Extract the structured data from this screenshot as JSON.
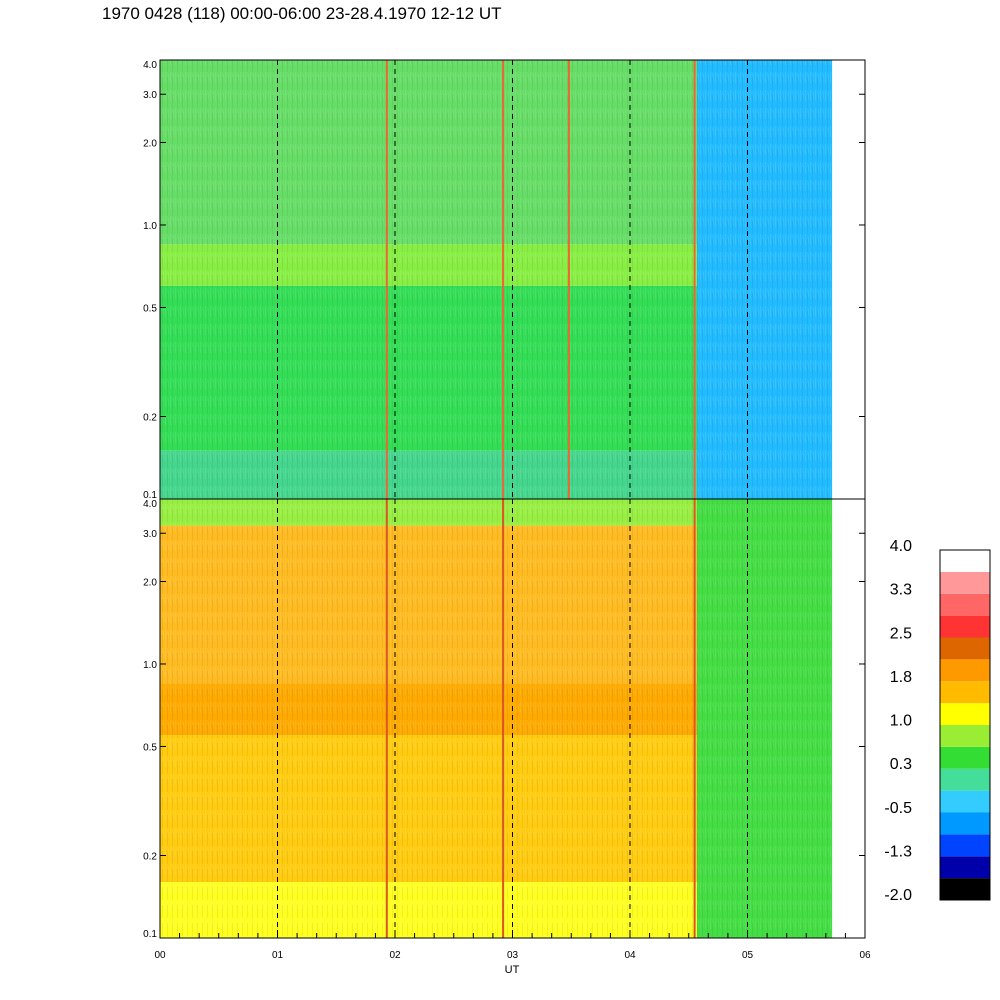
{
  "title": "1970 0428 (118) 00:00-06:00 23-28.4.1970  12-12 UT",
  "chart_data": {
    "type": "heatmap",
    "title": "1970 0428 (118) 00:00-06:00 23-28.4.1970  12-12 UT",
    "xlabel": "UT",
    "x_tick_labels": [
      "00",
      "01",
      "02",
      "03",
      "04",
      "05",
      "06"
    ],
    "xlim": [
      0,
      6
    ],
    "data_end_x": 5.72,
    "dashed_gridlines_x": [
      1,
      2,
      3,
      4,
      5
    ],
    "panels": [
      {
        "name": "top",
        "y_scale": "log",
        "ylim": [
          0.1,
          4.0
        ],
        "y_tick_values": [
          0.1,
          0.2,
          0.5,
          1.0,
          2.0,
          3.0,
          4.0
        ],
        "y_tick_labels": [
          "0.1",
          "0.2",
          "0.5",
          "1.0",
          "2.0",
          "3.0",
          "4.0"
        ],
        "bands": [
          {
            "from": 0.1,
            "to": 0.15,
            "color": "#44d68c"
          },
          {
            "from": 0.15,
            "to": 0.6,
            "color": "#33dd55"
          },
          {
            "from": 0.6,
            "to": 0.85,
            "color": "#88ee44"
          },
          {
            "from": 0.85,
            "to": 4.0,
            "color": "#66dd66"
          }
        ],
        "after_x": 4.57,
        "after_color": "#22bbff",
        "vertical_streaks": [
          {
            "x": 1.93,
            "color": "#ee6633"
          },
          {
            "x": 2.92,
            "color": "#ee6633"
          },
          {
            "x": 3.48,
            "color": "#ee6633"
          },
          {
            "x": 4.55,
            "color": "#ee6633"
          }
        ]
      },
      {
        "name": "bottom",
        "y_scale": "log",
        "ylim": [
          0.1,
          4.0
        ],
        "y_tick_values": [
          0.1,
          0.2,
          0.5,
          1.0,
          2.0,
          3.0,
          4.0
        ],
        "y_tick_labels": [
          "0.1",
          "0.2",
          "0.5",
          "1.0",
          "2.0",
          "3.0",
          "4.0"
        ],
        "bands": [
          {
            "from": 0.1,
            "to": 0.16,
            "color": "#ffff22"
          },
          {
            "from": 0.16,
            "to": 0.55,
            "color": "#ffcc11"
          },
          {
            "from": 0.55,
            "to": 0.85,
            "color": "#ffaa00"
          },
          {
            "from": 0.85,
            "to": 3.2,
            "color": "#ffbb22"
          },
          {
            "from": 3.2,
            "to": 4.0,
            "color": "#99ee44"
          }
        ],
        "after_x": 4.57,
        "after_color": "#44dd44",
        "vertical_streaks": [
          {
            "x": 1.93,
            "color": "#dd5522"
          },
          {
            "x": 2.92,
            "color": "#dd5522"
          },
          {
            "x": 4.55,
            "color": "#dd5522"
          }
        ]
      }
    ],
    "colorbar": {
      "tick_labels": [
        "4.0",
        "3.3",
        "2.5",
        "1.8",
        "1.0",
        "0.3",
        "-0.5",
        "-1.3",
        "-2.0"
      ],
      "colors": [
        "#000000",
        "#0000aa",
        "#0044ff",
        "#0099ff",
        "#33ccff",
        "#44dd99",
        "#33dd33",
        "#99ee33",
        "#ffff00",
        "#ffbb00",
        "#ff9900",
        "#dd6600",
        "#ff3333",
        "#ff6666",
        "#ff9999",
        "#ffffff"
      ]
    }
  }
}
